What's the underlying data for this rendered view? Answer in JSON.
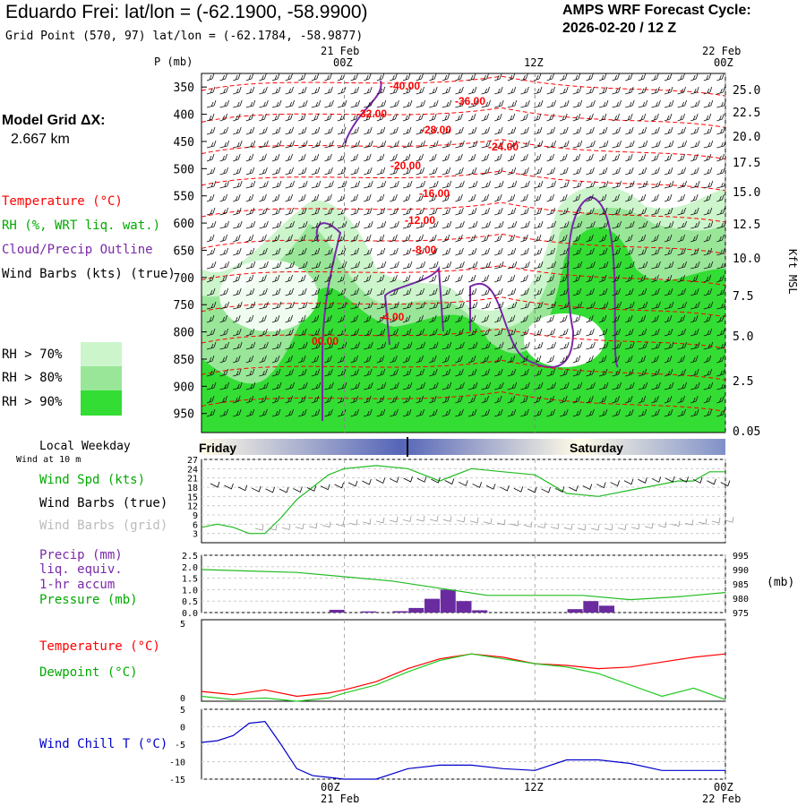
{
  "header": {
    "title": "Eduardo Frei:  lat/lon = (-62.1900, -58.9900)",
    "subtitle": "Grid Point (570, 97) lat/lon = (-62.1784, -58.9877)",
    "cycle_line1": "AMPS WRF Forecast Cycle:",
    "cycle_line2": "2026-02-20 / 12  Z"
  },
  "top_axis": {
    "p_label": "P (mb)",
    "times": [
      {
        "date": "21 Feb",
        "hour": "00Z"
      },
      {
        "date": "",
        "hour": "12Z"
      },
      {
        "date": "22 Feb",
        "hour": "00Z"
      }
    ]
  },
  "bottom_axis": {
    "times": [
      {
        "date": "21 Feb",
        "hour": "00Z"
      },
      {
        "date": "",
        "hour": "12Z"
      },
      {
        "date": "22 Feb",
        "hour": "00Z"
      }
    ]
  },
  "left_legend": {
    "model_grid": "Model Grid ΔX:",
    "model_grid_value": "2.667 km",
    "temperature": "Temperature (°C)",
    "rh": "RH (%, WRT liq. wat.)",
    "cloud": "Cloud/Precip Outline",
    "wind_barbs": "Wind Barbs (kts) (true)",
    "rh70": "RH > 70%",
    "rh80": "RH > 80%",
    "rh90": "RH > 90%",
    "local_weekday": "Local Weekday",
    "wind_at_10m": "Wind at 10 m",
    "wind_spd": "Wind Spd (kts)",
    "wind_barbs_true": "Wind Barbs (true)",
    "wind_barbs_grid": "Wind Barbs (grid)",
    "precip": "Precip (mm)",
    "liq_equiv": "liq. equiv.",
    "hr_accum": "1-hr accum",
    "pressure": "Pressure (mb)",
    "temperature2": "Temperature (°C)",
    "dewpoint": "Dewpoint (°C)",
    "wind_chill": "Wind Chill T (°C)"
  },
  "right_axis_label": "Kft MSL",
  "pressure_right_label": "(mb)",
  "weekday_bar": {
    "friday": "Friday",
    "saturday": "Saturday"
  },
  "colors": {
    "temperature": "#ff0000",
    "rh": "#00aa00",
    "cloud": "#7a28a8",
    "wind": "#000000",
    "wind_grid": "#999999",
    "precip": "#6a2aa0",
    "pressure": "#22bb22",
    "dewpoint": "#22cc22",
    "wind_chill": "#0000cc",
    "rh70": "#ccf5cc",
    "rh80": "#99e699",
    "rh90": "#33dd33"
  },
  "chart_data": [
    {
      "type": "heatmap",
      "title": "Cross-section",
      "xlabel": "",
      "ylabel": "P (mb)",
      "y_left_ticks": [
        350,
        400,
        450,
        500,
        550,
        600,
        650,
        700,
        750,
        800,
        850,
        900,
        950
      ],
      "y_right_ticks": [
        "25.0",
        "22.5",
        "20.0",
        "17.5",
        "15.0",
        "12.5",
        "10.0",
        "7.5",
        "5.0",
        "2.5",
        "0.05"
      ],
      "y_right_label": "Kft MSL",
      "temperature_contour_labels": [
        "-40.00",
        "-36.00",
        "-32.00",
        "-28.00",
        "-24.00",
        "-20.00",
        "-16.00",
        "-12.00",
        "-8.00",
        "-4.00",
        "00.00"
      ],
      "x_ticks": [
        "00Z",
        "12Z",
        "00Z"
      ]
    },
    {
      "type": "line",
      "title": "Wind Spd (kts)",
      "xlabel": "",
      "ylabel": "Wind Spd (kts)",
      "y_ticks": [
        3,
        6,
        9,
        12,
        15,
        18,
        21,
        24,
        27
      ],
      "ylim": [
        0,
        27
      ],
      "x": [
        -9,
        -8,
        -7,
        -6,
        -5,
        -4,
        -3,
        -2,
        -1,
        0,
        2,
        4,
        6,
        8,
        10,
        12,
        14,
        16,
        18,
        20,
        21,
        22,
        23,
        24
      ],
      "series": [
        {
          "name": "Wind Spd (kts)",
          "values": [
            5,
            6,
            5,
            3,
            3,
            8,
            14,
            18,
            22,
            24,
            25,
            24,
            20,
            24,
            23,
            22,
            16,
            15,
            17,
            19,
            20,
            20,
            23,
            23
          ]
        }
      ]
    },
    {
      "type": "bar",
      "title": "Precip (mm)",
      "xlabel": "",
      "ylabel": "Precip (mm)",
      "y_ticks_left": [
        "0.0",
        "0.5",
        "1.0",
        "1.5",
        "2.0",
        "2.5"
      ],
      "y_ticks_right": [
        975,
        980,
        985,
        990,
        995
      ],
      "x": [
        -0.5,
        1.5,
        3.5,
        4.5,
        5.5,
        6.5,
        7.5,
        8.5,
        14.5,
        15.5,
        16.5
      ],
      "series": [
        {
          "name": "Precip (mm)",
          "values": [
            0.12,
            0.05,
            0.06,
            0.2,
            0.6,
            1.0,
            0.5,
            0.1,
            0.15,
            0.5,
            0.3
          ]
        },
        {
          "name": "Pressure (mb)",
          "x": [
            -9,
            -6,
            -3,
            0,
            3,
            6,
            9,
            12,
            15,
            18,
            21,
            24
          ],
          "values": [
            990,
            989.5,
            989,
            987.5,
            986,
            983.5,
            981,
            981,
            981,
            979.5,
            980.5,
            982
          ]
        }
      ]
    },
    {
      "type": "line",
      "title": "Temperature / Dewpoint",
      "xlabel": "",
      "ylabel": "°C",
      "y_ticks": [
        0,
        5
      ],
      "ylim": [
        0,
        5
      ],
      "x": [
        -9,
        -7,
        -5,
        -3,
        -1,
        0,
        2,
        4,
        6,
        8,
        10,
        12,
        14,
        16,
        18,
        20,
        22,
        24
      ],
      "series": [
        {
          "name": "Temperature (°C)",
          "values": [
            0.6,
            0.4,
            0.7,
            0.3,
            0.5,
            0.7,
            1.2,
            2.0,
            2.6,
            2.9,
            2.7,
            2.3,
            2.2,
            2.0,
            2.1,
            2.4,
            2.7,
            2.9
          ]
        },
        {
          "name": "Dewpoint (°C)",
          "values": [
            0.3,
            0.1,
            0.2,
            0.0,
            0.2,
            0.5,
            1.0,
            1.8,
            2.5,
            2.9,
            2.6,
            2.3,
            2.1,
            1.7,
            1.0,
            0.3,
            0.8,
            0.1
          ]
        }
      ]
    },
    {
      "type": "line",
      "title": "Wind Chill T (°C)",
      "xlabel": "",
      "ylabel": "Wind Chill T (°C)",
      "y_ticks": [
        -15,
        -10,
        -5,
        0,
        5
      ],
      "ylim": [
        -15,
        5
      ],
      "x": [
        -9,
        -8,
        -7,
        -6,
        -5,
        -4,
        -3,
        -2,
        -1,
        0,
        2,
        4,
        6,
        8,
        10,
        12,
        14,
        16,
        18,
        20,
        22,
        24
      ],
      "series": [
        {
          "name": "Wind Chill T (°C)",
          "values": [
            -4.5,
            -4,
            -2.5,
            1,
            1.5,
            -5,
            -12,
            -14,
            -14.5,
            -15,
            -15,
            -12,
            -11,
            -11,
            -12,
            -12.5,
            -9.5,
            -9.5,
            -10.5,
            -12.5,
            -12.5,
            -12.5
          ]
        }
      ]
    }
  ]
}
